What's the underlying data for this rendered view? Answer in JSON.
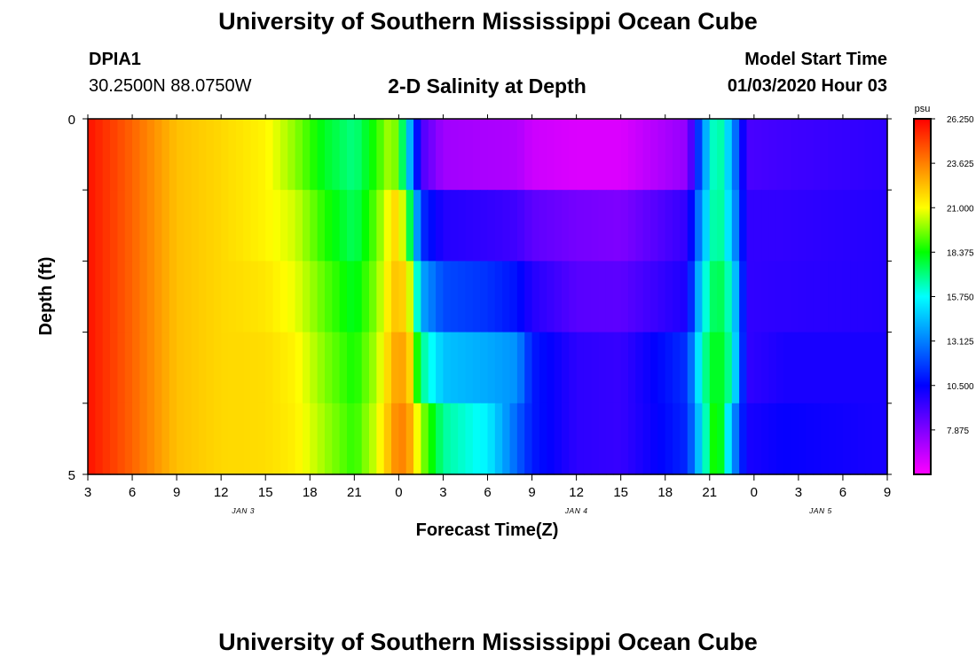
{
  "page": {
    "title_top": "University of Southern Mississippi Ocean Cube",
    "title_bottom": "University of Southern Mississippi Ocean Cube",
    "station_id": "DPIA1",
    "station_coords": "30.2500N 88.0750W",
    "plot_title": "2-D Salinity at Depth",
    "model_start_label": "Model Start Time",
    "model_start_value": "01/03/2020 Hour 03"
  },
  "chart_data": {
    "type": "heatmap",
    "title": "2-D Salinity at Depth",
    "xlabel": "Forecast Time(Z)",
    "ylabel": "Depth (ft)",
    "x_tick_labels": [
      "3",
      "6",
      "9",
      "12",
      "15",
      "18",
      "21",
      "0",
      "3",
      "6",
      "9",
      "12",
      "15",
      "18",
      "21",
      "0",
      "3",
      "6",
      "9"
    ],
    "x_hours_range": [
      0,
      54
    ],
    "date_labels": [
      {
        "text": "JAN 3",
        "hour": 10.5
      },
      {
        "text": "JAN 4",
        "hour": 33
      },
      {
        "text": "JAN 5",
        "hour": 49.5
      }
    ],
    "y_tick_labels": [
      {
        "text": "0",
        "depth": 0
      },
      {
        "text": "5",
        "depth": 5
      }
    ],
    "ylim": [
      0,
      5
    ],
    "n_depth_levels": 5,
    "colorbar": {
      "unit": "psu",
      "min": 5.25,
      "max": 26.25,
      "tick_values": [
        26.25,
        23.625,
        21.0,
        18.375,
        15.75,
        13.125,
        10.5,
        7.875
      ],
      "tick_labels": [
        "26.250",
        "23.625",
        "21.000",
        "18.375",
        "15.750",
        "13.125",
        "10.500",
        "7.875"
      ],
      "colors": [
        "#ff00ff",
        "#8000ff",
        "#0000ff",
        "#0080ff",
        "#00ffff",
        "#00ff00",
        "#ffff00",
        "#ff8000",
        "#ff0000"
      ]
    },
    "salinity_profiles": [
      {
        "hour": 0,
        "values": [
          25.9,
          25.9,
          25.9,
          25.9,
          25.9
        ]
      },
      {
        "hour": 3,
        "values": [
          24.2,
          24.2,
          24.2,
          24.2,
          24.2
        ]
      },
      {
        "hour": 6,
        "values": [
          22.3,
          22.3,
          22.3,
          22.3,
          22.3
        ]
      },
      {
        "hour": 9,
        "values": [
          21.8,
          21.8,
          21.8,
          21.8,
          21.8
        ]
      },
      {
        "hour": 12,
        "values": [
          21.2,
          21.2,
          21.5,
          21.7,
          21.7
        ]
      },
      {
        "hour": 14,
        "values": [
          19.8,
          20.5,
          20.8,
          21.2,
          21.3
        ]
      },
      {
        "hour": 16,
        "values": [
          18.0,
          18.7,
          19.3,
          19.7,
          20.0
        ]
      },
      {
        "hour": 18,
        "values": [
          17.0,
          17.4,
          18.0,
          18.5,
          18.8
        ]
      },
      {
        "hour": 19.5,
        "values": [
          18.8,
          19.4,
          19.8,
          20.2,
          20.6
        ]
      },
      {
        "hour": 20.5,
        "values": [
          20.3,
          21.4,
          21.8,
          22.3,
          22.7
        ]
      },
      {
        "hour": 21,
        "values": [
          19.0,
          22.0,
          22.5,
          23.2,
          23.8
        ]
      },
      {
        "hour": 21.7,
        "values": [
          14.5,
          18.0,
          21.0,
          22.2,
          23.0
        ]
      },
      {
        "hour": 22.5,
        "values": [
          9.0,
          11.5,
          14.0,
          17.0,
          20.0
        ]
      },
      {
        "hour": 24,
        "values": [
          7.2,
          9.8,
          12.0,
          14.5,
          16.8
        ]
      },
      {
        "hour": 27,
        "values": [
          7.0,
          9.5,
          11.5,
          14.0,
          15.5
        ]
      },
      {
        "hour": 29,
        "values": [
          6.9,
          9.2,
          10.8,
          13.5,
          12.5
        ]
      },
      {
        "hour": 30,
        "values": [
          6.3,
          8.6,
          9.8,
          11.0,
          11.0
        ]
      },
      {
        "hour": 33,
        "values": [
          6.0,
          8.1,
          8.7,
          9.6,
          9.6
        ]
      },
      {
        "hour": 36,
        "values": [
          6.0,
          7.9,
          8.6,
          9.4,
          9.4
        ]
      },
      {
        "hour": 40.5,
        "values": [
          7.5,
          9.5,
          10.0,
          11.5,
          11.3
        ]
      },
      {
        "hour": 41.5,
        "values": [
          13.0,
          14.0,
          15.5,
          16.5,
          15.5
        ]
      },
      {
        "hour": 42.5,
        "values": [
          17.5,
          17.5,
          18.0,
          18.5,
          19.5
        ]
      },
      {
        "hour": 43.5,
        "values": [
          14.0,
          14.5,
          16.0,
          16.5,
          14.0
        ]
      },
      {
        "hour": 44.5,
        "values": [
          9.0,
          9.5,
          9.5,
          9.5,
          10.0
        ]
      },
      {
        "hour": 47,
        "values": [
          9.2,
          9.5,
          9.6,
          10.0,
          10.4
        ]
      },
      {
        "hour": 54,
        "values": [
          9.6,
          9.8,
          9.8,
          10.0,
          10.0
        ]
      }
    ]
  }
}
